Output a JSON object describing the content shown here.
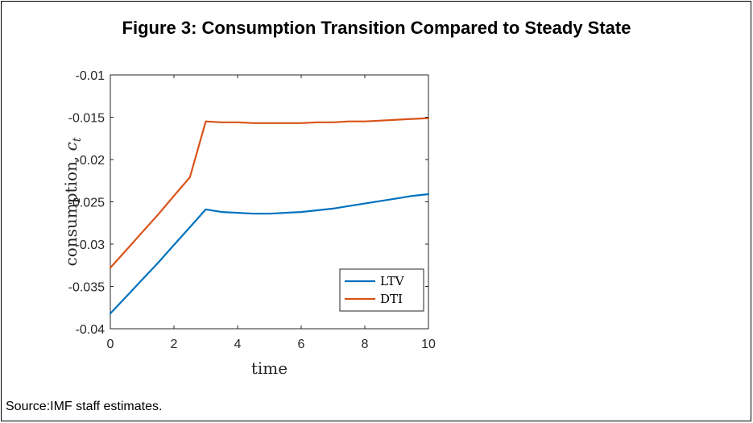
{
  "figure": {
    "title": "Figure 3: Consumption Transition Compared to Steady State",
    "source": "Source:IMF staff estimates."
  },
  "chart_data": {
    "type": "line",
    "title": "Figure 3: Consumption Transition Compared to Steady State",
    "xlabel": "time",
    "ylabel": "consumption, c_t",
    "ylabel_main": "consumption, ",
    "ylabel_var": "c",
    "ylabel_sub": "t",
    "xlim": [
      0,
      10
    ],
    "ylim": [
      -0.04,
      -0.01
    ],
    "xticks": [
      0,
      2,
      4,
      6,
      8,
      10
    ],
    "xtick_labels": [
      "0",
      "2",
      "4",
      "6",
      "8",
      "10"
    ],
    "yticks": [
      -0.04,
      -0.035,
      -0.03,
      -0.025,
      -0.02,
      -0.015,
      -0.01
    ],
    "ytick_labels": [
      "-0.04",
      "-0.035",
      "-0.03",
      "-0.025",
      "-0.02",
      "-0.015",
      "-0.01"
    ],
    "grid": false,
    "legend_position": "bottom-right",
    "series": [
      {
        "name": "LTV",
        "color": "#0072BD",
        "x": [
          0,
          0.5,
          1,
          1.5,
          2,
          2.5,
          3,
          3.5,
          4,
          4.5,
          5,
          5.5,
          6,
          6.5,
          7,
          7.5,
          8,
          8.5,
          9,
          9.5,
          10
        ],
        "y": [
          -0.0382,
          -0.0362,
          -0.0342,
          -0.0322,
          -0.0301,
          -0.028,
          -0.0259,
          -0.0262,
          -0.0263,
          -0.0264,
          -0.0264,
          -0.0263,
          -0.0262,
          -0.026,
          -0.0258,
          -0.0255,
          -0.0252,
          -0.0249,
          -0.0246,
          -0.0243,
          -0.0241
        ]
      },
      {
        "name": "DTI",
        "color": "#D95319",
        "x": [
          0,
          0.5,
          1,
          1.5,
          2,
          2.5,
          3,
          3.5,
          4,
          4.5,
          5,
          5.5,
          6,
          6.5,
          7,
          7.5,
          8,
          8.5,
          9,
          9.5,
          10
        ],
        "y": [
          -0.0328,
          -0.0307,
          -0.0286,
          -0.0265,
          -0.0243,
          -0.0221,
          -0.0155,
          -0.0156,
          -0.0156,
          -0.0157,
          -0.0157,
          -0.0157,
          -0.0157,
          -0.0156,
          -0.0156,
          -0.0155,
          -0.0155,
          -0.0154,
          -0.0153,
          -0.0152,
          -0.0151
        ]
      }
    ]
  }
}
